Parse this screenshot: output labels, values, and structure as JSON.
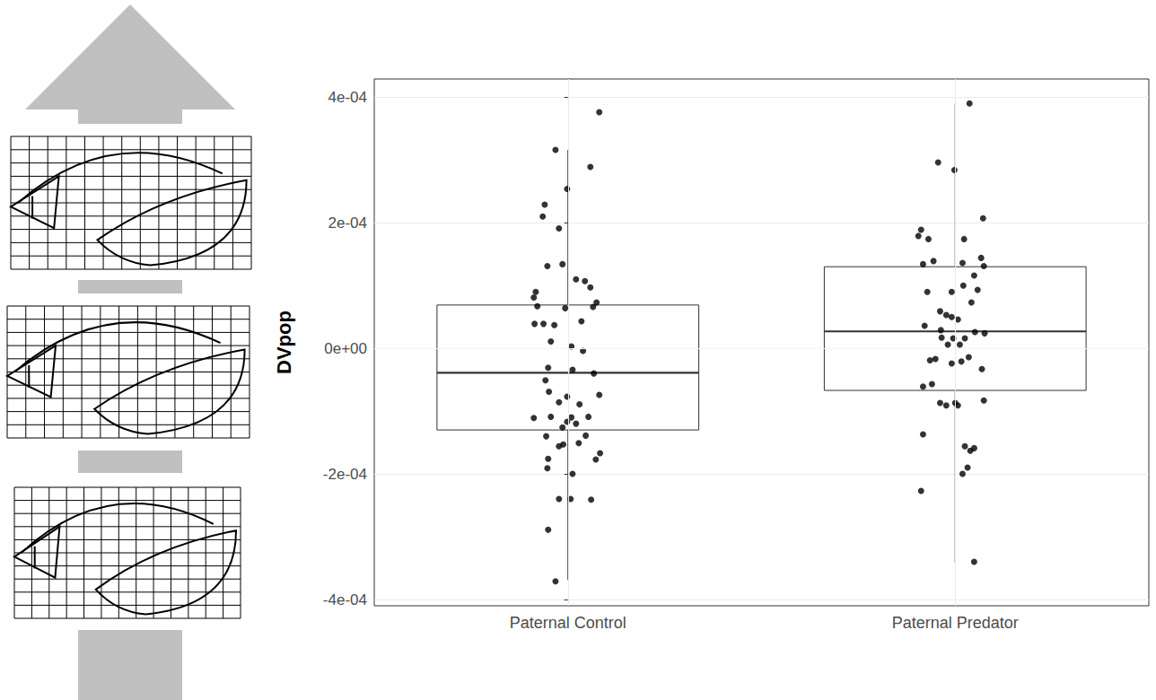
{
  "chart_data": {
    "type": "boxplot",
    "y_label": "DVpop",
    "categories": [
      "Paternal Control",
      "Paternal Predator"
    ],
    "boxes": [
      {
        "min": -0.000369,
        "q1": -0.00013,
        "median": -3.9e-05,
        "q3": 6.9e-05,
        "max": 0.000316
      },
      {
        "min": -0.000341,
        "q1": -6.7e-05,
        "median": 2.7e-05,
        "q3": 0.00013,
        "max": 0.00039
      }
    ],
    "points": [
      [
        [
          0.081,
          0.000376
        ],
        [
          -0.032,
          0.000316
        ],
        [
          0.058,
          0.000289
        ],
        [
          -0.002,
          0.000254
        ],
        [
          -0.06,
          0.000229
        ],
        [
          -0.065,
          0.00021
        ],
        [
          -0.023,
          0.000191
        ],
        [
          -0.053,
          0.000131
        ],
        [
          -0.014,
          0.000134
        ],
        [
          0.021,
          0.00011
        ],
        [
          0.044,
          0.000107
        ],
        [
          0.058,
          9.7e-05
        ],
        [
          -0.083,
          9e-05
        ],
        [
          -0.088,
          8.1e-05
        ],
        [
          0.074,
          7.3e-05
        ],
        [
          0.065,
          6.6e-05
        ],
        [
          -0.007,
          6.4e-05
        ],
        [
          -0.079,
          6.7e-05
        ],
        [
          -0.086,
          3.9e-05
        ],
        [
          -0.063,
          3.9e-05
        ],
        [
          -0.035,
          3.7e-05
        ],
        [
          0.035,
          4.3e-05
        ],
        [
          -0.044,
          1.1e-05
        ],
        [
          0.009,
          3e-06
        ],
        [
          0.039,
          -4e-06
        ],
        [
          -0.051,
          -3.1e-05
        ],
        [
          0.012,
          -3.4e-05
        ],
        [
          -0.058,
          -5.1e-05
        ],
        [
          0.067,
          -4e-05
        ],
        [
          -0.049,
          -6.9e-05
        ],
        [
          -0.002,
          -7.7e-05
        ],
        [
          0.081,
          -7.4e-05
        ],
        [
          -0.023,
          -8.6e-05
        ],
        [
          0.03,
          -8.9e-05
        ],
        [
          -0.088,
          -0.000111
        ],
        [
          -0.044,
          -0.000109
        ],
        [
          0.009,
          -0.00011
        ],
        [
          0.053,
          -0.000109
        ],
        [
          -0.002,
          -0.000117
        ],
        [
          0.021,
          -0.00012
        ],
        [
          -0.014,
          -0.000126
        ],
        [
          -0.056,
          -0.00014
        ],
        [
          0.046,
          -0.000139
        ],
        [
          -0.012,
          -0.000153
        ],
        [
          0.028,
          -0.000151
        ],
        [
          -0.023,
          -0.000156
        ],
        [
          0.083,
          -0.000167
        ],
        [
          0.072,
          -0.000177
        ],
        [
          -0.051,
          -0.000176
        ],
        [
          -0.053,
          -0.000191
        ],
        [
          0.012,
          -0.0002
        ],
        [
          -0.023,
          -0.00024
        ],
        [
          0.007,
          -0.00024
        ],
        [
          0.06,
          -0.000241
        ],
        [
          -0.051,
          -0.000289
        ],
        [
          -0.032,
          -0.000371
        ]
      ],
      [
        [
          1.037,
          0.00039
        ],
        [
          0.956,
          0.000296
        ],
        [
          0.998,
          0.000284
        ],
        [
          1.072,
          0.000207
        ],
        [
          0.912,
          0.000189
        ],
        [
          0.905,
          0.000179
        ],
        [
          0.931,
          0.000174
        ],
        [
          1.023,
          0.000174
        ],
        [
          1.067,
          0.000144
        ],
        [
          0.917,
          0.000134
        ],
        [
          0.944,
          0.000139
        ],
        [
          1.019,
          0.000136
        ],
        [
          1.074,
          0.000131
        ],
        [
          1.049,
          0.000116
        ],
        [
          1.021,
          0.0001
        ],
        [
          0.991,
          9e-05
        ],
        [
          0.928,
          9e-05
        ],
        [
          1.058,
          9.3e-05
        ],
        [
          1.042,
          7.3e-05
        ],
        [
          0.961,
          5.9e-05
        ],
        [
          0.977,
          5.3e-05
        ],
        [
          0.991,
          5e-05
        ],
        [
          1.007,
          4.6e-05
        ],
        [
          0.921,
          3.6e-05
        ],
        [
          0.963,
          2.9e-05
        ],
        [
          1.051,
          2.6e-05
        ],
        [
          1.076,
          2.4e-05
        ],
        [
          0.965,
          1.7e-05
        ],
        [
          0.995,
          1.6e-05
        ],
        [
          1.025,
          1.6e-05
        ],
        [
          1.012,
          6e-06
        ],
        [
          0.981,
          6e-06
        ],
        [
          0.949,
          -1.7e-05
        ],
        [
          0.935,
          -1.9e-05
        ],
        [
          1.035,
          -1.4e-05
        ],
        [
          1.016,
          -2.1e-05
        ],
        [
          0.991,
          -2.4e-05
        ],
        [
          1.069,
          -3.3e-05
        ],
        [
          0.917,
          -6.1e-05
        ],
        [
          0.94,
          -5.7e-05
        ],
        [
          1.074,
          -8.3e-05
        ],
        [
          0.961,
          -8.7e-05
        ],
        [
          0.977,
          -9.1e-05
        ],
        [
          1.007,
          -9.1e-05
        ],
        [
          1.0,
          -8.7e-05
        ],
        [
          0.917,
          -0.000137
        ],
        [
          1.025,
          -0.000156
        ],
        [
          1.049,
          -0.000159
        ],
        [
          1.039,
          -0.000163
        ],
        [
          1.032,
          -0.00019
        ],
        [
          1.019,
          -0.0002
        ],
        [
          0.912,
          -0.000227
        ],
        [
          1.049,
          -0.00034
        ]
      ]
    ],
    "color": "#000000",
    "ylim": [
      -0.00041,
      0.000429
    ],
    "yticks": [
      {
        "value": -0.0004,
        "label": "-4e-04"
      },
      {
        "value": -0.0002,
        "label": "-2e-04"
      },
      {
        "value": 0,
        "label": "0e+00"
      },
      {
        "value": 0.0002,
        "label": "2e-04"
      },
      {
        "value": 0.0004,
        "label": "4e-04"
      }
    ],
    "grid": true
  }
}
